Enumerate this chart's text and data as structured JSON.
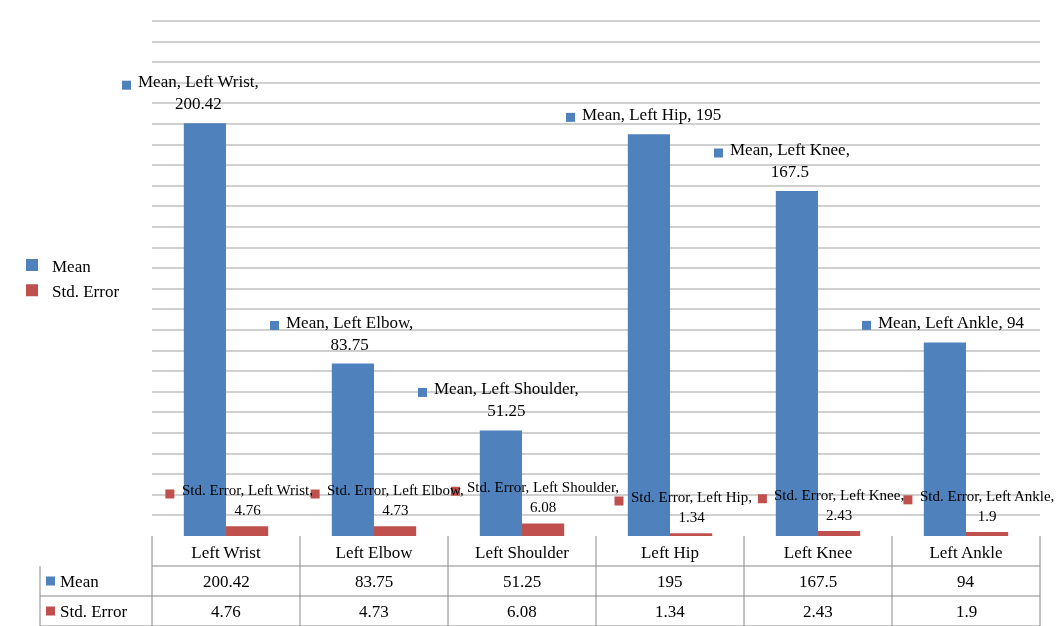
{
  "chart_data": {
    "type": "bar",
    "categories": [
      "Left Wrist",
      "Left Elbow",
      "Left Shoulder",
      "Left Hip",
      "Left Knee",
      "Left Ankle"
    ],
    "series": [
      {
        "name": "Mean",
        "color": "#4f81bd",
        "values": [
          200.42,
          83.75,
          51.25,
          195,
          167.5,
          94
        ]
      },
      {
        "name": "Std. Error",
        "color": "#c0504d",
        "values": [
          4.76,
          4.73,
          6.08,
          1.34,
          2.43,
          1.9
        ]
      }
    ],
    "annotations": [
      {
        "text": "Mean, Left Wrist, 200.42",
        "x": "Left Wrist",
        "y": 200.42
      },
      {
        "text": "Mean, Left Elbow, 83.75",
        "x": "Left Elbow",
        "y": 83.75
      },
      {
        "text": "Mean, Left Shoulder, 51.25",
        "x": "Left Shoulder",
        "y": 51.25
      },
      {
        "text": "Mean, Left Hip, 195",
        "x": "Left Hip",
        "y": 195
      },
      {
        "text": "Mean, Left Knee, 167.5",
        "x": "Left Knee",
        "y": 167.5
      },
      {
        "text": "Mean, Left Ankle, 94",
        "x": "Left Ankle",
        "y": 94
      },
      {
        "text": "Std. Error, Left Wrist, 4.76",
        "x": "Left Wrist",
        "y": 4.76
      },
      {
        "text": "Std. Error, Left Elbow, 4.73",
        "x": "Left Elbow",
        "y": 4.73
      },
      {
        "text": "Std. Error, Left Shoulder, 6.08",
        "x": "Left Shoulder",
        "y": 6.08
      },
      {
        "text": "Std. Error, Left Hip, 1.34",
        "x": "Left Hip",
        "y": 1.34
      },
      {
        "text": "Std. Error, Left Knee, 2.43",
        "x": "Left Knee",
        "y": 2.43
      },
      {
        "text": "Std. Error, Left Ankle, 1.9",
        "x": "Left Ankle",
        "y": 1.9
      }
    ],
    "data_labels": true,
    "grid": "y",
    "legend": "left",
    "tick_labels": "x"
  }
}
